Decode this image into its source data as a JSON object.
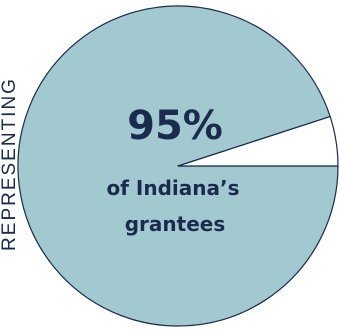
{
  "chart_data": {
    "type": "pie",
    "slices": [
      {
        "label": "of Indiana's grantees",
        "value": 95,
        "color": "#a2c8d0"
      },
      {
        "label": "",
        "value": 5,
        "color": "#ffffff"
      }
    ],
    "center_label": {
      "value": "95%",
      "line1": "of Indiana’s",
      "line2": "grantees"
    },
    "side_text": "REPRESENTING",
    "colors": {
      "text": "#1b2b4d",
      "outline": "#1b2b4d"
    }
  }
}
